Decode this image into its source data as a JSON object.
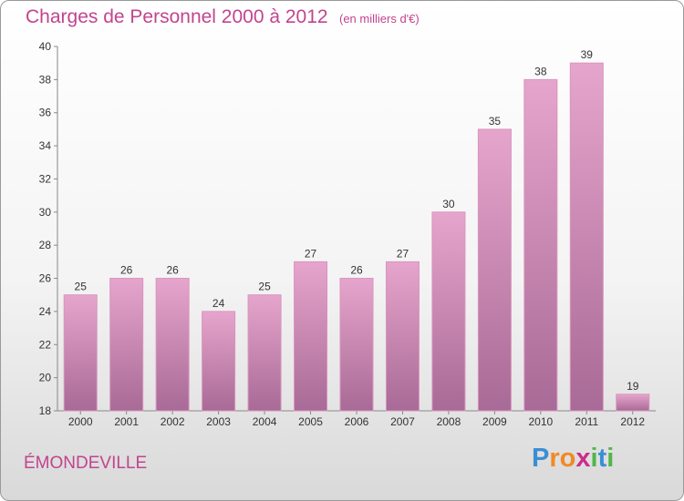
{
  "title": "Charges de Personnel 2000 à 2012",
  "subtitle": "(en milliers d'€)",
  "place": "ÉMONDEVILLE",
  "logo": {
    "letters": [
      "P",
      "r",
      "o",
      "x",
      "i",
      "t",
      "i"
    ],
    "colors": [
      "#3a8fd4",
      "#f08a24",
      "#f08a24",
      "#cc2c8a",
      "#53b54a",
      "#3a8fd4",
      "#53b54a"
    ]
  },
  "colors": {
    "bar_top": "#e6a5cc",
    "bar_bottom": "#a86a96",
    "accent": "#c2448e"
  },
  "chart_data": {
    "type": "bar",
    "categories": [
      "2000",
      "2001",
      "2002",
      "2003",
      "2004",
      "2005",
      "2006",
      "2007",
      "2008",
      "2009",
      "2010",
      "2011",
      "2012"
    ],
    "values": [
      25,
      26,
      26,
      24,
      25,
      27,
      26,
      27,
      30,
      35,
      38,
      39,
      19
    ],
    "ylim": [
      18,
      40
    ],
    "yticks": [
      18,
      20,
      22,
      24,
      26,
      28,
      30,
      32,
      34,
      36,
      38,
      40
    ],
    "grid": false,
    "legend": "none"
  }
}
